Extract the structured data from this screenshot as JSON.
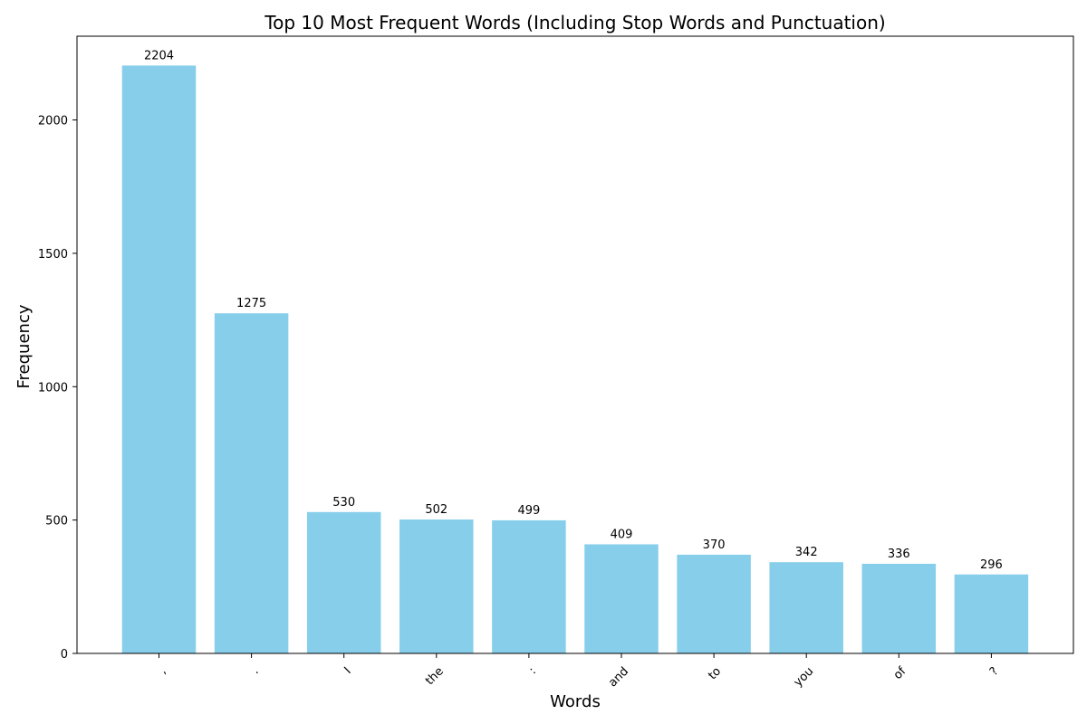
{
  "chart_data": {
    "type": "bar",
    "title": "Top 10 Most Frequent Words (Including Stop Words and Punctuation)",
    "xlabel": "Words",
    "ylabel": "Frequency",
    "categories": [
      ",",
      ".",
      "I",
      "the",
      ":",
      "and",
      "to",
      "you",
      "of",
      "?"
    ],
    "values": [
      2204,
      1275,
      530,
      502,
      499,
      409,
      370,
      342,
      336,
      296
    ],
    "ylim": [
      0,
      2314
    ],
    "yticks": [
      0,
      500,
      1000,
      1500,
      2000
    ],
    "grid": false,
    "bar_color": "#87CEEB",
    "x_tick_rotation": 45
  }
}
